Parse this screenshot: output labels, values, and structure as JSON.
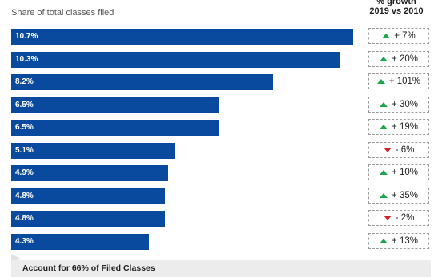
{
  "header": {
    "left_label": "Share of total classes filed",
    "right_label_line1": "% growth",
    "right_label_line2": "2019 vs 2010"
  },
  "colors": {
    "bar": "#0a4a9e",
    "up_arrow": "#1aa64a",
    "down_arrow": "#d0202a"
  },
  "chart_data": {
    "type": "bar",
    "orientation": "horizontal",
    "values": [
      10.7,
      10.3,
      8.2,
      6.5,
      6.5,
      5.1,
      4.9,
      4.8,
      4.8,
      4.3
    ],
    "value_labels": [
      "10.7%",
      "10.3%",
      "8.2%",
      "6.5%",
      "6.5%",
      "5.1%",
      "4.9%",
      "4.8%",
      "4.8%",
      "4.3%"
    ],
    "xlim": [
      0,
      10.7
    ],
    "growth": [
      {
        "direction": "up",
        "label": "+ 7%"
      },
      {
        "direction": "up",
        "label": "+ 20%"
      },
      {
        "direction": "up",
        "label": "+ 101%"
      },
      {
        "direction": "up",
        "label": "+ 30%"
      },
      {
        "direction": "up",
        "label": "+ 19%"
      },
      {
        "direction": "down",
        "label": "- 6%"
      },
      {
        "direction": "up",
        "label": "+ 10%"
      },
      {
        "direction": "up",
        "label": "+ 35%"
      },
      {
        "direction": "down",
        "label": "- 2%"
      },
      {
        "direction": "up",
        "label": "+ 13%"
      }
    ]
  },
  "footer": {
    "text": "Account for 66% of Filed Classes"
  }
}
